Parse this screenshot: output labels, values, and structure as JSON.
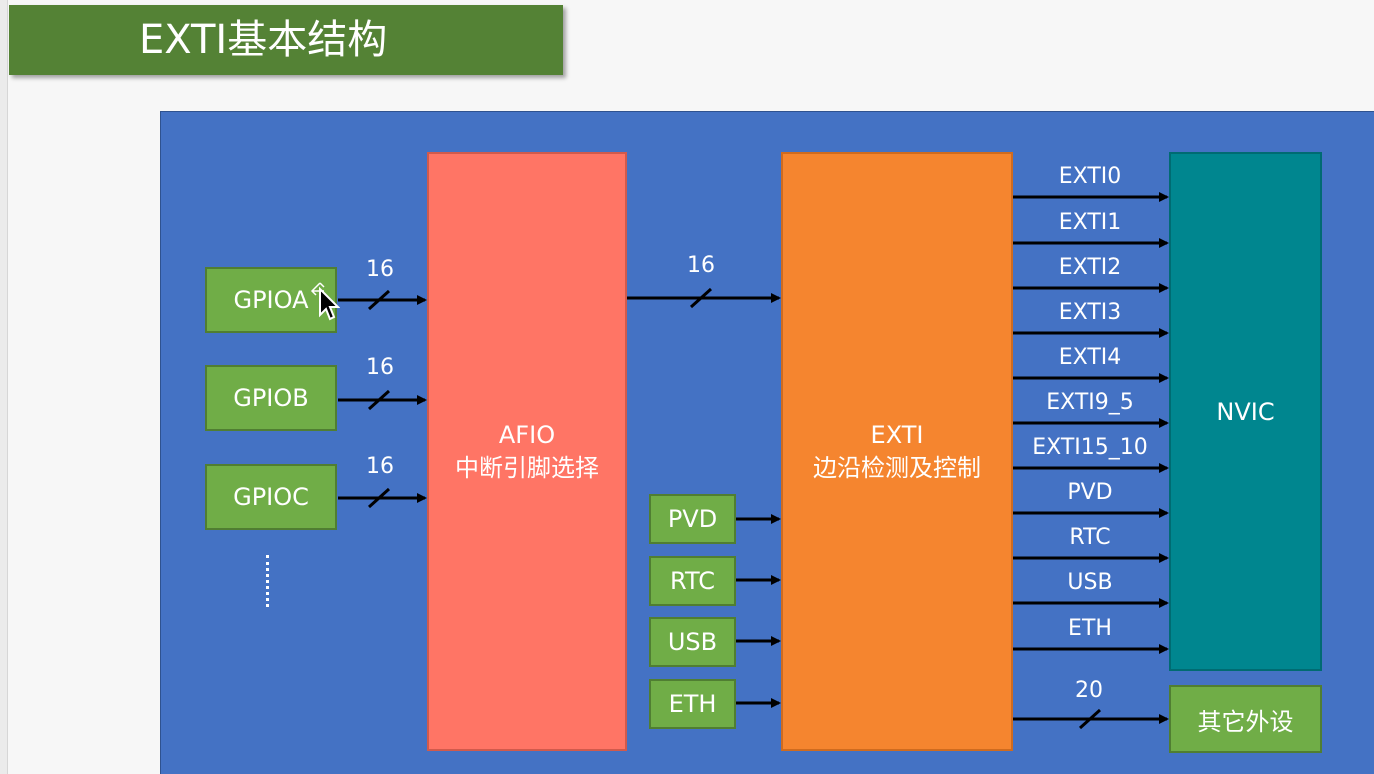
{
  "title": "EXTI基本结构",
  "gpio_ports": [
    "GPIOA",
    "GPIOB",
    "GPIOC"
  ],
  "gpio_ellipsis": "······",
  "bus_widths": {
    "gpioa": "16",
    "gpiob": "16",
    "gpioc": "16",
    "afio_to_exti": "16",
    "exti_to_others": "20"
  },
  "afio": {
    "name": "AFIO",
    "desc": "中断引脚选择"
  },
  "exti": {
    "name": "EXTI",
    "desc": "边沿检测及控制"
  },
  "extra_inputs": [
    "PVD",
    "RTC",
    "USB",
    "ETH"
  ],
  "exti_outputs": [
    "EXTI0",
    "EXTI1",
    "EXTI2",
    "EXTI3",
    "EXTI4",
    "EXTI9_5",
    "EXTI15_10",
    "PVD",
    "RTC",
    "USB",
    "ETH"
  ],
  "nvic": "NVIC",
  "other_peripherals": "其它外设",
  "colors": {
    "title_bg": "#548235",
    "panel_bg": "#4472c4",
    "gpio_green": "#70ad47",
    "afio_red": "#ff7565",
    "exti_orange": "#f5852f",
    "nvic_teal": "#00868f"
  }
}
